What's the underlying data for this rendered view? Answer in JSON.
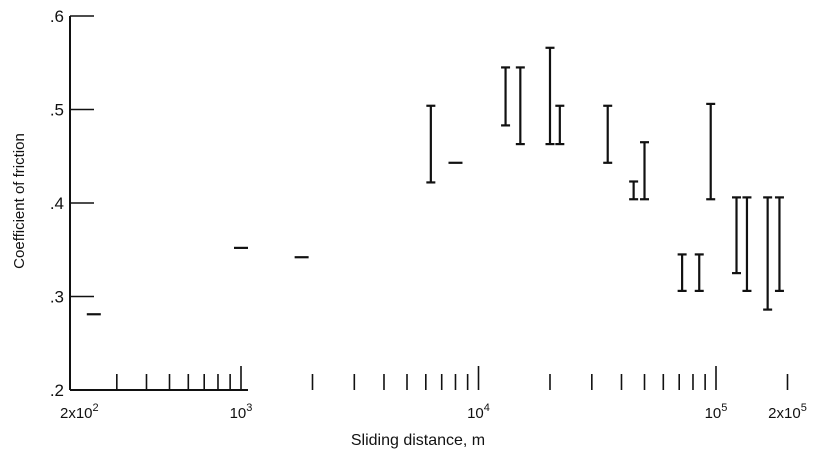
{
  "chart_data": {
    "type": "scatter",
    "title": "",
    "xlabel": "Sliding distance, m",
    "ylabel": "Coefficient of friction",
    "x_scale": "log",
    "xlim": [
      200,
      220000
    ],
    "ylim": [
      0.2,
      0.6
    ],
    "grid": false,
    "y_ticks": [
      {
        "value": 0.2,
        "label": ".2"
      },
      {
        "value": 0.3,
        "label": ".3"
      },
      {
        "value": 0.4,
        "label": ".4"
      },
      {
        "value": 0.5,
        "label": ".5"
      },
      {
        "value": 0.6,
        "label": ".6"
      }
    ],
    "x_tick_labels": [
      {
        "value": 200,
        "mantissa": "2x10",
        "exp": "2"
      },
      {
        "value": 1000,
        "mantissa": "10",
        "exp": "3"
      },
      {
        "value": 10000,
        "mantissa": "10",
        "exp": "4"
      },
      {
        "value": 100000,
        "mantissa": "10",
        "exp": "5"
      },
      {
        "value": 200000,
        "mantissa": "2x10",
        "exp": "5"
      }
    ],
    "x_minor_ticks": [
      300,
      400,
      500,
      600,
      700,
      800,
      900,
      1000,
      2000,
      3000,
      4000,
      5000,
      6000,
      7000,
      8000,
      9000,
      10000,
      20000,
      30000,
      40000,
      50000,
      60000,
      70000,
      80000,
      90000,
      100000,
      200000
    ],
    "series": [
      {
        "points": [
          {
            "x": 240,
            "low": 0.281,
            "high": 0.281
          },
          {
            "x": 1000,
            "low": 0.352,
            "high": 0.352
          },
          {
            "x": 1800,
            "low": 0.342,
            "high": 0.342
          },
          {
            "x": 6300,
            "low": 0.422,
            "high": 0.504
          },
          {
            "x": 8000,
            "low": 0.443,
            "high": 0.443
          },
          {
            "x": 13000,
            "low": 0.483,
            "high": 0.545
          },
          {
            "x": 15000,
            "low": 0.463,
            "high": 0.545
          },
          {
            "x": 20000,
            "low": 0.463,
            "high": 0.566
          },
          {
            "x": 22000,
            "low": 0.463,
            "high": 0.504
          },
          {
            "x": 35000,
            "low": 0.443,
            "high": 0.504
          },
          {
            "x": 45000,
            "low": 0.404,
            "high": 0.423
          },
          {
            "x": 50000,
            "low": 0.404,
            "high": 0.465
          },
          {
            "x": 72000,
            "low": 0.306,
            "high": 0.345
          },
          {
            "x": 85000,
            "low": 0.306,
            "high": 0.345
          },
          {
            "x": 95000,
            "low": 0.404,
            "high": 0.506
          },
          {
            "x": 122000,
            "low": 0.325,
            "high": 0.406
          },
          {
            "x": 135000,
            "low": 0.306,
            "high": 0.406
          },
          {
            "x": 165000,
            "low": 0.286,
            "high": 0.406
          },
          {
            "x": 185000,
            "low": 0.306,
            "high": 0.406
          }
        ]
      }
    ]
  }
}
